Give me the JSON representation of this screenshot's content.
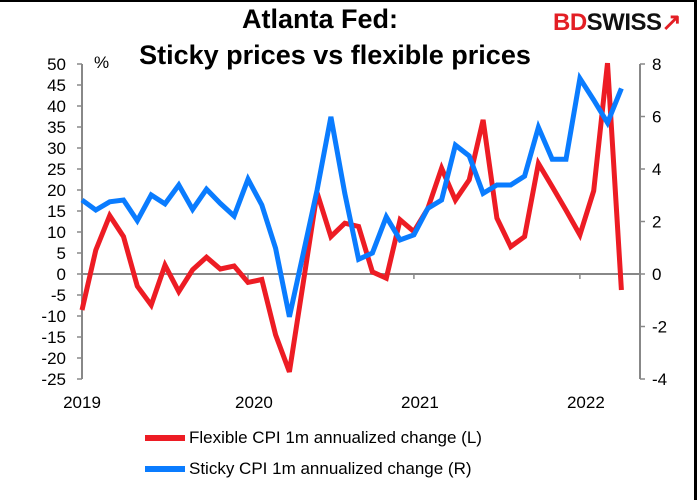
{
  "chart_data": {
    "type": "line",
    "title": [
      "Atlanta Fed:",
      "Sticky prices vs flexible prices"
    ],
    "brand": "BDSWISS",
    "left_axis": {
      "unit": "%",
      "ylim": [
        -25,
        50
      ],
      "ticks": [
        50,
        45,
        40,
        35,
        30,
        25,
        20,
        15,
        10,
        5,
        0,
        -5,
        -10,
        -15,
        -20,
        -25
      ]
    },
    "right_axis": {
      "ylim": [
        -4,
        8
      ],
      "ticks": [
        8,
        6,
        4,
        2,
        0,
        -2,
        -4
      ]
    },
    "x_ticks": [
      "2019",
      "2020",
      "2021",
      "2022"
    ],
    "x_start": "2019-01",
    "x_end": "2022-04",
    "frequency": "monthly",
    "grid": false,
    "legend_position": "bottom",
    "series": [
      {
        "name": "Flexible CPI 1m annualized change (L)",
        "axis": "left",
        "color": "#ed1c24",
        "values": [
          -8.6,
          5.7,
          13.9,
          8.9,
          -2.9,
          -7.4,
          2.1,
          -4.2,
          1.0,
          4.0,
          1.2,
          1.9,
          -2.0,
          -1.3,
          -14.5,
          -23.3,
          -2.0,
          19.3,
          8.9,
          12.1,
          11.3,
          0.5,
          -1.0,
          12.9,
          10.1,
          15.6,
          25.2,
          17.6,
          22.4,
          36.7,
          13.3,
          6.5,
          8.9,
          26.3,
          20.8,
          15.2,
          9.3,
          19.8,
          50.2,
          -3.8
        ]
      },
      {
        "name": "Sticky CPI 1m annualized change (R)",
        "axis": "right",
        "color": "#0a7cff",
        "values": [
          2.82,
          2.44,
          2.75,
          2.82,
          2.03,
          3.01,
          2.67,
          3.39,
          2.46,
          3.23,
          2.69,
          2.21,
          3.61,
          2.63,
          0.98,
          -1.63,
          0.79,
          3.2,
          5.99,
          3.07,
          0.56,
          0.8,
          2.18,
          1.3,
          1.49,
          2.5,
          2.82,
          4.91,
          4.5,
          3.07,
          3.39,
          3.39,
          3.73,
          5.59,
          4.37,
          4.37,
          7.45,
          6.63,
          5.76,
          7.07
        ]
      }
    ]
  }
}
